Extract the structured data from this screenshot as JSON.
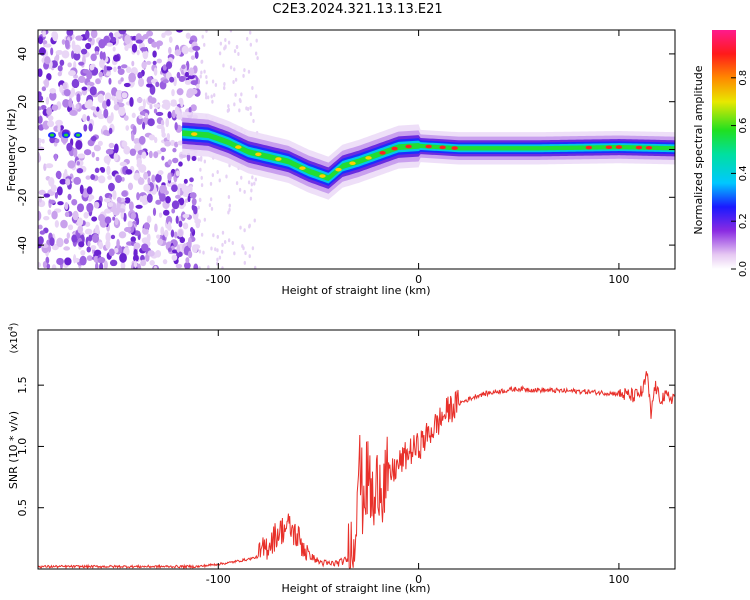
{
  "title": "C2E3.2024.321.13.13.E21",
  "chart_data": [
    {
      "type": "heatmap",
      "xlabel": "Height of straight line (km)",
      "ylabel": "Frequency (Hz)",
      "xlim": [
        -190,
        128
      ],
      "ylim": [
        -50,
        50
      ],
      "xticks": [
        -100,
        0,
        100
      ],
      "yticks": [
        -40,
        -20,
        0,
        20,
        40
      ],
      "ridge": [
        {
          "x": -120,
          "y": 7
        },
        {
          "x": -105,
          "y": 6
        },
        {
          "x": -95,
          "y": 3
        },
        {
          "x": -85,
          "y": -1
        },
        {
          "x": -75,
          "y": -3
        },
        {
          "x": -65,
          "y": -5
        },
        {
          "x": -55,
          "y": -9
        },
        {
          "x": -45,
          "y": -12
        },
        {
          "x": -38,
          "y": -7
        },
        {
          "x": -30,
          "y": -5
        },
        {
          "x": -20,
          "y": -2
        },
        {
          "x": -10,
          "y": 1
        },
        {
          "x": 0,
          "y": 1.5
        },
        {
          "x": 20,
          "y": 0.5
        },
        {
          "x": 60,
          "y": 0.5
        },
        {
          "x": 100,
          "y": 1
        },
        {
          "x": 128,
          "y": 0.5
        }
      ],
      "colorbar": {
        "label": "Normalized spectral amplitude",
        "range": [
          0,
          1
        ],
        "ticks": [
          0.0,
          0.2,
          0.4,
          0.6,
          0.8
        ]
      }
    },
    {
      "type": "line",
      "xlabel": "Height of straight line (km)",
      "ylabel": "SNR (10 * v/v)",
      "yexp": "(x10",
      "yexp_sup": "4",
      "yexp_close": ")",
      "xlim": [
        -190,
        128
      ],
      "ylim": [
        0,
        1.95
      ],
      "xticks": [
        -100,
        0,
        100
      ],
      "yticks": [
        0.5,
        1.0,
        1.5
      ],
      "series": [
        {
          "color": "#e8302a",
          "x": [
            -190,
            -150,
            -110,
            -95,
            -85,
            -80,
            -75,
            -70,
            -65,
            -60,
            -55,
            -50,
            -45,
            -40,
            -35,
            -32,
            -30,
            -28,
            -25,
            -22,
            -20,
            -18,
            -15,
            -10,
            -5,
            0,
            5,
            10,
            15,
            20,
            30,
            40,
            50,
            60,
            80,
            100,
            108,
            112,
            114,
            116,
            118,
            120,
            125,
            128
          ],
          "y": [
            0.02,
            0.02,
            0.02,
            0.05,
            0.08,
            0.1,
            0.2,
            0.3,
            0.35,
            0.25,
            0.12,
            0.06,
            0.04,
            0.05,
            0.08,
            0.3,
            0.9,
            0.6,
            0.75,
            0.45,
            0.8,
            0.7,
            0.75,
            0.85,
            0.95,
            1.0,
            1.1,
            1.2,
            1.3,
            1.35,
            1.42,
            1.45,
            1.47,
            1.46,
            1.45,
            1.43,
            1.41,
            1.45,
            1.6,
            1.25,
            1.5,
            1.4,
            1.4,
            1.4
          ]
        }
      ]
    }
  ]
}
